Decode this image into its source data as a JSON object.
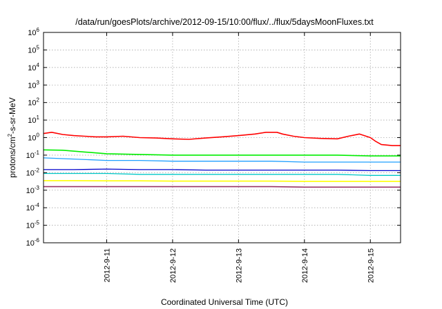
{
  "chart_data": {
    "type": "line",
    "title": "/data/run/goesPlots/archive/2012-09-15/10:00/flux/../flux/5daysMoonFluxes.txt",
    "xlabel": "Coordinated Universal Time (UTC)",
    "ylabel": {
      "pre": "protons/cm",
      "sup": "2",
      "post": "-s-sr-MeV"
    },
    "y_scale": "log",
    "ylim": [
      1e-06,
      1000000.0
    ],
    "y_ticks": [
      {
        "value": 1e-06,
        "base": "10",
        "exp": "-6"
      },
      {
        "value": 1e-05,
        "base": "10",
        "exp": "-5"
      },
      {
        "value": 0.0001,
        "base": "10",
        "exp": "-4"
      },
      {
        "value": 0.001,
        "base": "10",
        "exp": "-3"
      },
      {
        "value": 0.01,
        "base": "10",
        "exp": "-2"
      },
      {
        "value": 0.1,
        "base": "10",
        "exp": "-1"
      },
      {
        "value": 1,
        "base": "10",
        "exp": "0"
      },
      {
        "value": 10.0,
        "base": "10",
        "exp": "1"
      },
      {
        "value": 100.0,
        "base": "10",
        "exp": "2"
      },
      {
        "value": 1000.0,
        "base": "10",
        "exp": "3"
      },
      {
        "value": 10000.0,
        "base": "10",
        "exp": "4"
      },
      {
        "value": 100000.0,
        "base": "10",
        "exp": "5"
      },
      {
        "value": 1000000.0,
        "base": "10",
        "exp": "6"
      }
    ],
    "x_range": [
      "2012-09-10T01:00",
      "2012-09-15T11:00"
    ],
    "x_ticks": [
      {
        "value": "2012-09-11T00:00",
        "label": "2012-9-11"
      },
      {
        "value": "2012-09-12T00:00",
        "label": "2012-9-12"
      },
      {
        "value": "2012-09-13T00:00",
        "label": "2012-9-13"
      },
      {
        "value": "2012-09-14T00:00",
        "label": "2012-9-14"
      },
      {
        "value": "2012-09-15T00:00",
        "label": "2012-9-15"
      }
    ],
    "grid": true,
    "series": [
      {
        "color": "#ff0000",
        "width": 1.6,
        "points": [
          [
            "2012-09-10T01:00",
            1.7
          ],
          [
            "2012-09-10T04:00",
            2.0
          ],
          [
            "2012-09-10T08:00",
            1.5
          ],
          [
            "2012-09-10T12:00",
            1.3
          ],
          [
            "2012-09-10T16:00",
            1.2
          ],
          [
            "2012-09-10T20:00",
            1.1
          ],
          [
            "2012-09-11T00:00",
            1.1
          ],
          [
            "2012-09-11T06:00",
            1.2
          ],
          [
            "2012-09-11T12:00",
            1.0
          ],
          [
            "2012-09-11T18:00",
            0.95
          ],
          [
            "2012-09-12T00:00",
            0.85
          ],
          [
            "2012-09-12T06:00",
            0.8
          ],
          [
            "2012-09-12T12:00",
            0.95
          ],
          [
            "2012-09-12T18:00",
            1.1
          ],
          [
            "2012-09-13T00:00",
            1.3
          ],
          [
            "2012-09-13T06:00",
            1.6
          ],
          [
            "2012-09-13T10:00",
            2.0
          ],
          [
            "2012-09-13T14:00",
            2.0
          ],
          [
            "2012-09-13T16:00",
            1.6
          ],
          [
            "2012-09-13T20:00",
            1.2
          ],
          [
            "2012-09-14T00:00",
            1.0
          ],
          [
            "2012-09-14T06:00",
            0.9
          ],
          [
            "2012-09-14T12:00",
            0.85
          ],
          [
            "2012-09-14T16:00",
            1.2
          ],
          [
            "2012-09-14T20:00",
            1.6
          ],
          [
            "2012-09-15T00:00",
            1.0
          ],
          [
            "2012-09-15T02:00",
            0.6
          ],
          [
            "2012-09-15T04:00",
            0.4
          ],
          [
            "2012-09-15T08:00",
            0.35
          ],
          [
            "2012-09-15T11:00",
            0.35
          ]
        ]
      },
      {
        "color": "#00ee00",
        "width": 1.6,
        "points": [
          [
            "2012-09-10T01:00",
            0.2
          ],
          [
            "2012-09-10T08:00",
            0.19
          ],
          [
            "2012-09-10T16:00",
            0.15
          ],
          [
            "2012-09-11T00:00",
            0.12
          ],
          [
            "2012-09-11T12:00",
            0.11
          ],
          [
            "2012-09-12T00:00",
            0.1
          ],
          [
            "2012-09-12T12:00",
            0.1
          ],
          [
            "2012-09-13T00:00",
            0.1
          ],
          [
            "2012-09-13T12:00",
            0.1
          ],
          [
            "2012-09-14T00:00",
            0.1
          ],
          [
            "2012-09-14T12:00",
            0.1
          ],
          [
            "2012-09-15T00:00",
            0.09
          ],
          [
            "2012-09-15T11:00",
            0.09
          ]
        ]
      },
      {
        "color": "#1f9fff",
        "width": 1.3,
        "points": [
          [
            "2012-09-10T01:00",
            0.07
          ],
          [
            "2012-09-10T12:00",
            0.06
          ],
          [
            "2012-09-11T00:00",
            0.05
          ],
          [
            "2012-09-11T12:00",
            0.05
          ],
          [
            "2012-09-12T00:00",
            0.045
          ],
          [
            "2012-09-12T12:00",
            0.045
          ],
          [
            "2012-09-13T00:00",
            0.045
          ],
          [
            "2012-09-13T12:00",
            0.045
          ],
          [
            "2012-09-14T00:00",
            0.04
          ],
          [
            "2012-09-14T12:00",
            0.04
          ],
          [
            "2012-09-15T00:00",
            0.04
          ],
          [
            "2012-09-15T11:00",
            0.04
          ]
        ]
      },
      {
        "color": "#0000cc",
        "width": 1.3,
        "points": [
          [
            "2012-09-10T01:00",
            0.015
          ],
          [
            "2012-09-10T12:00",
            0.015
          ],
          [
            "2012-09-11T00:00",
            0.016
          ],
          [
            "2012-09-11T12:00",
            0.015
          ],
          [
            "2012-09-12T00:00",
            0.015
          ],
          [
            "2012-09-12T12:00",
            0.014
          ],
          [
            "2012-09-13T00:00",
            0.014
          ],
          [
            "2012-09-13T12:00",
            0.014
          ],
          [
            "2012-09-14T00:00",
            0.014
          ],
          [
            "2012-09-14T12:00",
            0.014
          ],
          [
            "2012-09-15T00:00",
            0.013
          ],
          [
            "2012-09-15T11:00",
            0.013
          ]
        ]
      },
      {
        "color": "#00c8c8",
        "width": 1.3,
        "points": [
          [
            "2012-09-10T01:00",
            0.009
          ],
          [
            "2012-09-10T12:00",
            0.009
          ],
          [
            "2012-09-11T00:00",
            0.009
          ],
          [
            "2012-09-11T12:00",
            0.008
          ],
          [
            "2012-09-12T00:00",
            0.008
          ],
          [
            "2012-09-12T12:00",
            0.008
          ],
          [
            "2012-09-13T00:00",
            0.008
          ],
          [
            "2012-09-13T12:00",
            0.008
          ],
          [
            "2012-09-14T00:00",
            0.008
          ],
          [
            "2012-09-14T12:00",
            0.008
          ],
          [
            "2012-09-15T00:00",
            0.007
          ],
          [
            "2012-09-15T11:00",
            0.007
          ]
        ]
      },
      {
        "color": "#ffff00",
        "width": 1.6,
        "points": [
          [
            "2012-09-10T01:00",
            0.0035
          ],
          [
            "2012-09-10T12:00",
            0.0035
          ],
          [
            "2012-09-11T00:00",
            0.0034
          ],
          [
            "2012-09-11T12:00",
            0.0034
          ],
          [
            "2012-09-12T00:00",
            0.0033
          ],
          [
            "2012-09-12T12:00",
            0.0033
          ],
          [
            "2012-09-13T00:00",
            0.0033
          ],
          [
            "2012-09-13T12:00",
            0.0033
          ],
          [
            "2012-09-14T00:00",
            0.0032
          ],
          [
            "2012-09-14T12:00",
            0.0032
          ],
          [
            "2012-09-15T00:00",
            0.0032
          ],
          [
            "2012-09-15T11:00",
            0.0032
          ]
        ]
      },
      {
        "color": "#993366",
        "width": 1.6,
        "points": [
          [
            "2012-09-10T01:00",
            0.0016
          ],
          [
            "2012-09-10T12:00",
            0.0016
          ],
          [
            "2012-09-11T00:00",
            0.0016
          ],
          [
            "2012-09-11T12:00",
            0.0016
          ],
          [
            "2012-09-12T00:00",
            0.0016
          ],
          [
            "2012-09-12T12:00",
            0.0016
          ],
          [
            "2012-09-13T00:00",
            0.0016
          ],
          [
            "2012-09-13T12:00",
            0.0016
          ],
          [
            "2012-09-14T00:00",
            0.0015
          ],
          [
            "2012-09-14T12:00",
            0.0015
          ],
          [
            "2012-09-15T00:00",
            0.0015
          ],
          [
            "2012-09-15T11:00",
            0.0015
          ]
        ]
      }
    ]
  }
}
